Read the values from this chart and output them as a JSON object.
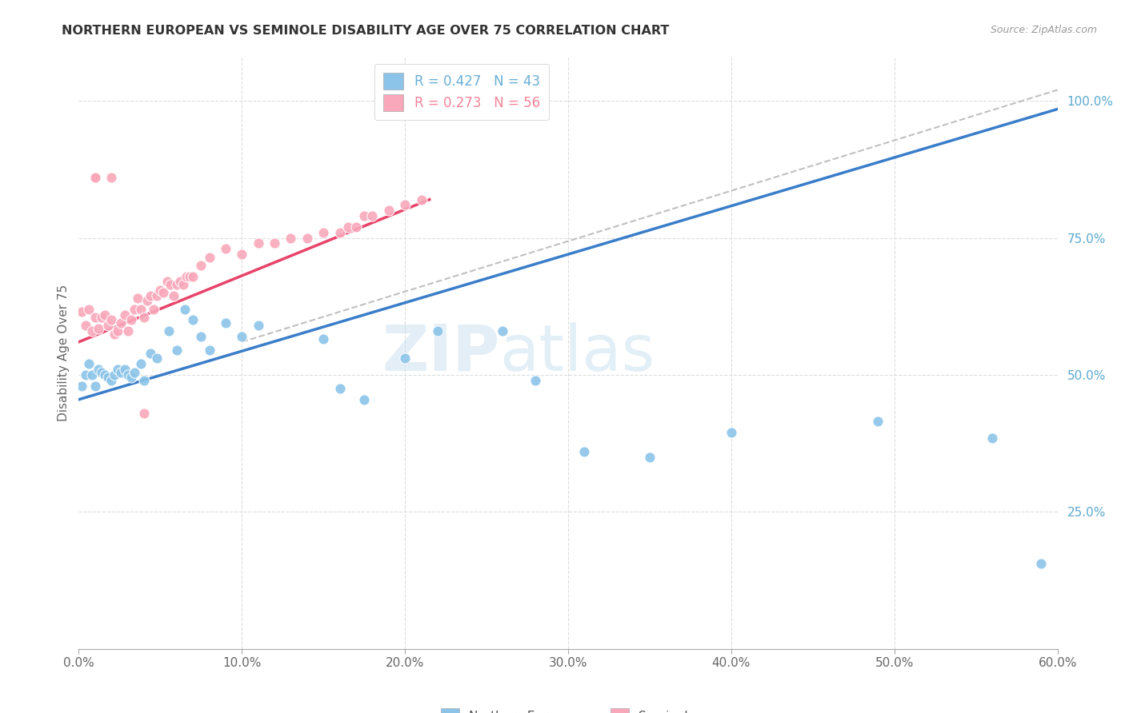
{
  "title": "NORTHERN EUROPEAN VS SEMINOLE DISABILITY AGE OVER 75 CORRELATION CHART",
  "source": "Source: ZipAtlas.com",
  "ylabel": "Disability Age Over 75",
  "xlim": [
    0.0,
    0.6
  ],
  "ylim": [
    0.0,
    1.08
  ],
  "legend_entries": [
    {
      "label": "R = 0.427   N = 43",
      "color": "#6aaed6"
    },
    {
      "label": "R = 0.273   N = 56",
      "color": "#f4849a"
    }
  ],
  "watermark_zip": "ZIP",
  "watermark_atlas": "atlas",
  "blue_color": "#8bc4e8",
  "pink_color": "#f9a8bb",
  "blue_line_color": "#3a7dc9",
  "pink_line_color": "#e8446a",
  "dashed_line_color": "#c0c0c0",
  "grid_color": "#dddddd",
  "background_color": "#ffffff",
  "blue_scatter_x": [
    0.002,
    0.004,
    0.006,
    0.008,
    0.01,
    0.012,
    0.014,
    0.016,
    0.018,
    0.02,
    0.022,
    0.024,
    0.026,
    0.028,
    0.03,
    0.032,
    0.034,
    0.038,
    0.04,
    0.044,
    0.048,
    0.055,
    0.06,
    0.065,
    0.07,
    0.075,
    0.08,
    0.09,
    0.1,
    0.11,
    0.15,
    0.16,
    0.175,
    0.2,
    0.22,
    0.26,
    0.28,
    0.31,
    0.35,
    0.4,
    0.49,
    0.56,
    0.59
  ],
  "blue_scatter_y": [
    0.48,
    0.5,
    0.52,
    0.5,
    0.48,
    0.51,
    0.505,
    0.5,
    0.495,
    0.49,
    0.5,
    0.51,
    0.505,
    0.51,
    0.5,
    0.495,
    0.505,
    0.52,
    0.49,
    0.54,
    0.53,
    0.58,
    0.545,
    0.62,
    0.6,
    0.57,
    0.545,
    0.595,
    0.57,
    0.59,
    0.565,
    0.475,
    0.455,
    0.53,
    0.58,
    0.58,
    0.49,
    0.36,
    0.35,
    0.395,
    0.415,
    0.385,
    0.155
  ],
  "pink_scatter_x": [
    0.002,
    0.004,
    0.006,
    0.008,
    0.01,
    0.012,
    0.014,
    0.016,
    0.018,
    0.02,
    0.022,
    0.024,
    0.026,
    0.028,
    0.03,
    0.032,
    0.034,
    0.036,
    0.038,
    0.04,
    0.042,
    0.044,
    0.046,
    0.048,
    0.05,
    0.052,
    0.054,
    0.056,
    0.058,
    0.06,
    0.062,
    0.064,
    0.066,
    0.068,
    0.07,
    0.075,
    0.08,
    0.09,
    0.1,
    0.11,
    0.12,
    0.13,
    0.14,
    0.15,
    0.16,
    0.165,
    0.17,
    0.175,
    0.18,
    0.19,
    0.2,
    0.21,
    0.04,
    0.01,
    0.01,
    0.02
  ],
  "pink_scatter_y": [
    0.615,
    0.59,
    0.62,
    0.58,
    0.605,
    0.585,
    0.605,
    0.61,
    0.59,
    0.6,
    0.575,
    0.58,
    0.595,
    0.61,
    0.58,
    0.6,
    0.62,
    0.64,
    0.62,
    0.605,
    0.635,
    0.645,
    0.62,
    0.645,
    0.655,
    0.65,
    0.67,
    0.665,
    0.645,
    0.665,
    0.67,
    0.665,
    0.68,
    0.68,
    0.68,
    0.7,
    0.715,
    0.73,
    0.72,
    0.74,
    0.74,
    0.75,
    0.75,
    0.76,
    0.76,
    0.77,
    0.77,
    0.79,
    0.79,
    0.8,
    0.81,
    0.82,
    0.43,
    0.86,
    0.86,
    0.86
  ],
  "blue_line_x": [
    0.0,
    0.6
  ],
  "blue_line_y": [
    0.455,
    0.985
  ],
  "pink_line_x": [
    0.0,
    0.215
  ],
  "pink_line_y": [
    0.56,
    0.82
  ],
  "dashed_line_x": [
    0.1,
    0.6
  ],
  "dashed_line_y": [
    0.56,
    1.02
  ],
  "x_tick_vals": [
    0.0,
    0.1,
    0.2,
    0.3,
    0.4,
    0.5,
    0.6
  ],
  "x_tick_labels": [
    "0.0%",
    "10.0%",
    "20.0%",
    "30.0%",
    "40.0%",
    "50.0%",
    "60.0%"
  ],
  "y_tick_vals": [
    0.25,
    0.5,
    0.75,
    1.0
  ],
  "y_tick_labels": [
    "25.0%",
    "50.0%",
    "75.0%",
    "100.0%"
  ]
}
